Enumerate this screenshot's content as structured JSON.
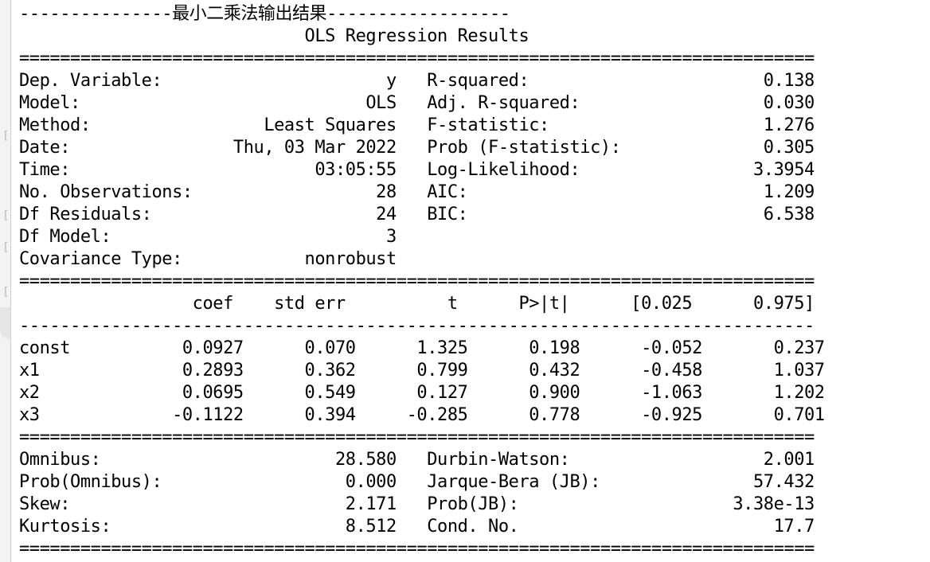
{
  "gutter": {
    "bracket_glyph": "["
  },
  "output": {
    "lines": [
      "---------------最小二乘法输出结果------------------",
      "                            OLS Regression Results                            ",
      "==============================================================================",
      "Dep. Variable:                      y   R-squared:                       0.138",
      "Model:                            OLS   Adj. R-squared:                  0.030",
      "Method:                 Least Squares   F-statistic:                     1.276",
      "Date:                Thu, 03 Mar 2022   Prob (F-statistic):              0.305",
      "Time:                        03:05:55   Log-Likelihood:                 3.3954",
      "No. Observations:                  28   AIC:                             1.209",
      "Df Residuals:                      24   BIC:                             6.538",
      "Df Model:                           3                                         ",
      "Covariance Type:            nonrobust                                         ",
      "==============================================================================",
      "                 coef    std err          t      P>|t|      [0.025      0.975]",
      "------------------------------------------------------------------------------",
      "const           0.0927      0.070      1.325      0.198      -0.052       0.237",
      "x1              0.2893      0.362      0.799      0.432      -0.458       1.037",
      "x2              0.0695      0.549      0.127      0.900      -1.063       1.202",
      "x3             -0.1122      0.394     -0.285      0.778      -0.925       0.701",
      "==============================================================================",
      "Omnibus:                       28.580   Durbin-Watson:                   2.001",
      "Prob(Omnibus):                  0.000   Jarque-Bera (JB):               57.432",
      "Skew:                           2.171   Prob(JB):                     3.38e-13",
      "Kurtosis:                       8.512   Cond. No.                         17.7",
      "=============================================================================="
    ]
  }
}
